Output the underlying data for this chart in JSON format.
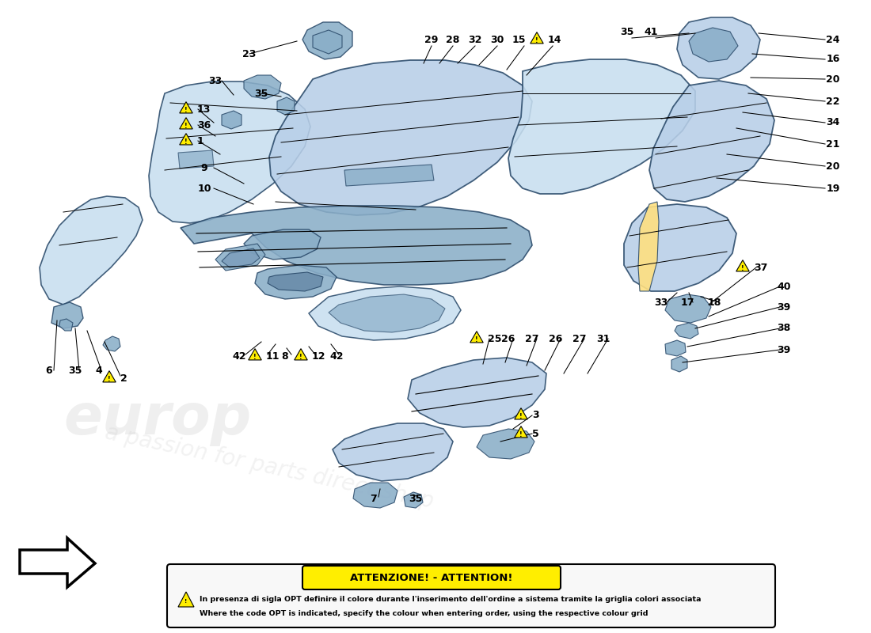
{
  "bg_color": "#ffffff",
  "part_color": "#b8cfe8",
  "part_edge_color": "#2a4a6a",
  "part_color2": "#8aaec8",
  "part_color3": "#c8dff0",
  "warning_color": "#ffee00",
  "warning_border": "#000000",
  "attention_box_color": "#ffee00",
  "attention_box_border": "#000000",
  "attention_title": "ATTENZIONE! - ATTENTION!",
  "attention_text1": "In presenza di sigla OPT definire il colore durante l'inserimento dell'ordine a sistema tramite la griglia colori associata",
  "attention_text2": "Where the code OPT is indicated, specify the colour when entering order, using the respective colour grid"
}
